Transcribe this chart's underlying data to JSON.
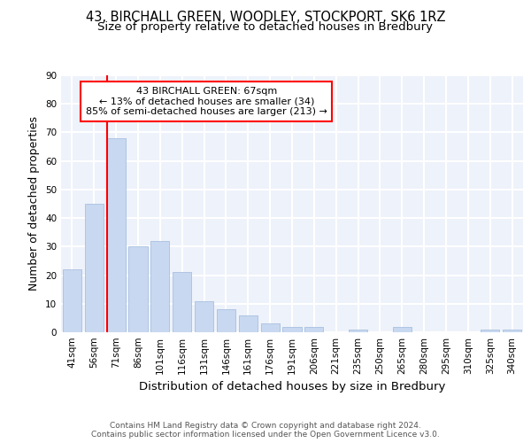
{
  "title_line1": "43, BIRCHALL GREEN, WOODLEY, STOCKPORT, SK6 1RZ",
  "title_line2": "Size of property relative to detached houses in Bredbury",
  "xlabel": "Distribution of detached houses by size in Bredbury",
  "ylabel": "Number of detached properties",
  "categories": [
    "41sqm",
    "56sqm",
    "71sqm",
    "86sqm",
    "101sqm",
    "116sqm",
    "131sqm",
    "146sqm",
    "161sqm",
    "176sqm",
    "191sqm",
    "206sqm",
    "221sqm",
    "235sqm",
    "250sqm",
    "265sqm",
    "280sqm",
    "295sqm",
    "310sqm",
    "325sqm",
    "340sqm"
  ],
  "values": [
    22,
    45,
    68,
    30,
    32,
    21,
    11,
    8,
    6,
    3,
    2,
    2,
    0,
    1,
    0,
    2,
    0,
    0,
    0,
    1,
    1
  ],
  "bar_color": "#c8d8f0",
  "bar_edgecolor": "#a8c0e0",
  "annotation_text": "43 BIRCHALL GREEN: 67sqm\n← 13% of detached houses are smaller (34)\n85% of semi-detached houses are larger (213) →",
  "annotation_box_color": "white",
  "annotation_box_edgecolor": "red",
  "vline_color": "red",
  "vline_x_index": 2,
  "ylim": [
    0,
    90
  ],
  "yticks": [
    0,
    10,
    20,
    30,
    40,
    50,
    60,
    70,
    80,
    90
  ],
  "background_color": "#eef2fa",
  "grid_color": "white",
  "footer_text": "Contains HM Land Registry data © Crown copyright and database right 2024.\nContains public sector information licensed under the Open Government Licence v3.0.",
  "title_fontsize": 10.5,
  "subtitle_fontsize": 9.5,
  "axis_label_fontsize": 9,
  "tick_fontsize": 7.5,
  "annotation_fontsize": 8,
  "footer_fontsize": 6.5
}
